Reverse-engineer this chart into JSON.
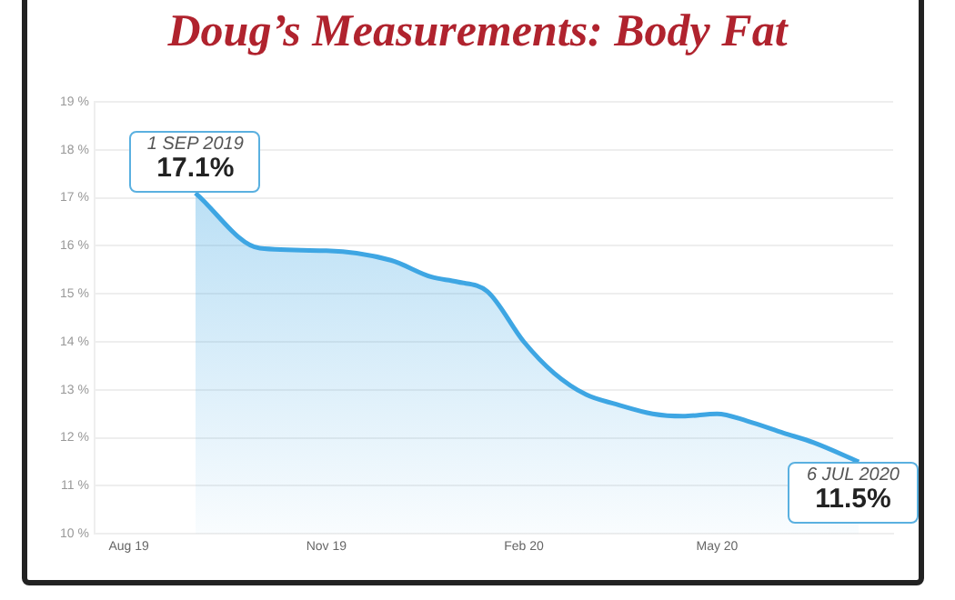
{
  "chart_data": {
    "type": "area",
    "title": "Doug’s Measurements: Body Fat",
    "x": [
      "2019-09-01",
      "2019-10-01",
      "2019-11-01",
      "2019-12-01",
      "2019-12-20",
      "2020-01-01",
      "2020-01-15",
      "2020-02-01",
      "2020-02-15",
      "2020-03-01",
      "2020-03-15",
      "2020-04-01",
      "2020-04-15",
      "2020-05-01",
      "2020-05-15",
      "2020-06-01",
      "2020-06-15",
      "2020-07-06"
    ],
    "series": [
      {
        "color": "#3ea6e3",
        "values": [
          17.1,
          15.95,
          15.9,
          15.7,
          15.35,
          15.25,
          15.05,
          14.0,
          13.35,
          12.9,
          12.7,
          12.5,
          12.45,
          12.5,
          12.35,
          12.1,
          11.9,
          11.5
        ]
      }
    ],
    "xlim": [
      "2019-07-16",
      "2020-07-22"
    ],
    "xticks": [
      {
        "value": "2019-08-01",
        "label": "Aug 19"
      },
      {
        "value": "2019-11-01",
        "label": "Nov 19"
      },
      {
        "value": "2020-02-01",
        "label": "Feb 20"
      },
      {
        "value": "2020-05-01",
        "label": "May 20"
      }
    ],
    "ylim": [
      10,
      19
    ],
    "yticks": [
      {
        "value": 10,
        "label": "10 %"
      },
      {
        "value": 11,
        "label": "11 %"
      },
      {
        "value": 12,
        "label": "12 %"
      },
      {
        "value": 13,
        "label": "13 %"
      },
      {
        "value": 14,
        "label": "14 %"
      },
      {
        "value": 15,
        "label": "15 %"
      },
      {
        "value": 16,
        "label": "16 %"
      },
      {
        "value": 17,
        "label": "17 %"
      },
      {
        "value": 18,
        "label": "18 %"
      },
      {
        "value": 19,
        "label": "19 %"
      }
    ],
    "grid": "y",
    "legend": false,
    "marker": "none",
    "annotations": [
      {
        "text": "1 SEP 2019",
        "x": "2019-09-01",
        "y": 17.1
      },
      {
        "text": "17.1%",
        "x": "2019-09-01",
        "y": 17.1
      },
      {
        "text": "6 JUL 2020",
        "x": "2020-07-06",
        "y": 11.5
      },
      {
        "text": "11.5%",
        "x": "2020-07-06",
        "y": 11.5
      }
    ]
  }
}
